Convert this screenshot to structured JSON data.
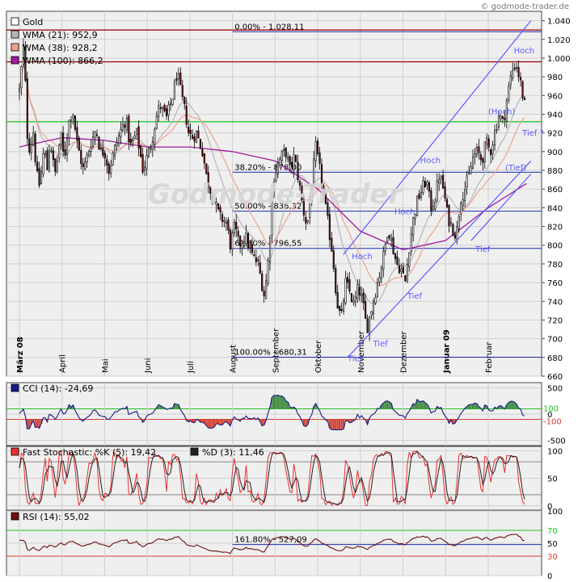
{
  "watermark": "© godmode-trader.de",
  "logo_text": "Godmode-Trader",
  "colors": {
    "panel_bg": "#efefef",
    "grid": "#cfcfcf",
    "up": "#ffffff",
    "down": "#6b0e0e",
    "wma21": "#b5b5b5",
    "wma38": "#f0a090",
    "wma100": "#a01ca0",
    "resistance": "#a01010",
    "support": "#20c020",
    "fib": "#2030b0",
    "trend": "#5b5bff",
    "cci_pos": "#3a8a3a",
    "cci_neg": "#d04030",
    "stoch_k": "#e83030",
    "stoch_d": "#202020",
    "rsi": "#6b1010"
  },
  "chart_data": [
    {
      "type": "candlestick",
      "title": "",
      "legend": [
        {
          "label": "Gold",
          "color": "#ffffff"
        },
        {
          "label": "WMA (21): 952,9",
          "color": "#b5b5b5"
        },
        {
          "label": "WMA (38): 928,2",
          "color": "#f0a090"
        },
        {
          "label": "WMA (100): 866,2",
          "color": "#a01ca0"
        }
      ],
      "legend_position": "top-left",
      "ylim": [
        660,
        1050
      ],
      "y_ticks": [
        660,
        680,
        700,
        720,
        740,
        760,
        780,
        800,
        820,
        840,
        860,
        880,
        900,
        920,
        940,
        960,
        980,
        1000,
        1020,
        1040
      ],
      "y_tick_labels": [
        "660",
        "680",
        "700",
        "720",
        "740",
        "760",
        "780",
        "800",
        "820",
        "840",
        "860",
        "880",
        "900",
        "920",
        "940",
        "960",
        "980",
        "1.000",
        "1.020",
        "1.040"
      ],
      "month_labels": [
        {
          "label": "März 08",
          "month_index": 0,
          "bold": true
        },
        {
          "label": "April",
          "month_index": 1
        },
        {
          "label": "Mai",
          "month_index": 2
        },
        {
          "label": "Juni",
          "month_index": 3
        },
        {
          "label": "Juli",
          "month_index": 4
        },
        {
          "label": "August",
          "month_index": 5
        },
        {
          "label": "September",
          "month_index": 6
        },
        {
          "label": "Oktober",
          "month_index": 7
        },
        {
          "label": "November",
          "month_index": 8
        },
        {
          "label": "Dezember",
          "month_index": 9
        },
        {
          "label": "Januar 09",
          "month_index": 10,
          "bold": true
        },
        {
          "label": "Februar",
          "month_index": 11
        }
      ],
      "close_path": [
        [
          0,
          965
        ],
        [
          0.05,
          990
        ],
        [
          0.1,
          1015
        ],
        [
          0.13,
          985
        ],
        [
          0.18,
          920
        ],
        [
          0.25,
          900
        ],
        [
          0.32,
          925
        ],
        [
          0.38,
          890
        ],
        [
          0.45,
          860
        ],
        [
          0.52,
          880
        ],
        [
          0.58,
          905
        ],
        [
          0.65,
          880
        ],
        [
          0.72,
          915
        ],
        [
          0.78,
          890
        ],
        [
          0.85,
          875
        ],
        [
          0.92,
          905
        ],
        [
          0.98,
          915
        ],
        [
          1.05,
          890
        ],
        [
          1.15,
          930
        ],
        [
          1.25,
          945
        ],
        [
          1.35,
          910
        ],
        [
          1.5,
          880
        ],
        [
          1.65,
          905
        ],
        [
          1.8,
          925
        ],
        [
          1.9,
          900
        ],
        [
          2.0,
          900
        ],
        [
          2.1,
          880
        ],
        [
          2.25,
          905
        ],
        [
          2.4,
          925
        ],
        [
          2.5,
          935
        ],
        [
          2.6,
          905
        ],
        [
          2.75,
          920
        ],
        [
          2.9,
          880
        ],
        [
          3.0,
          895
        ],
        [
          3.1,
          910
        ],
        [
          3.2,
          935
        ],
        [
          3.3,
          950
        ],
        [
          3.45,
          935
        ],
        [
          3.6,
          960
        ],
        [
          3.7,
          985
        ],
        [
          3.8,
          960
        ],
        [
          3.9,
          940
        ],
        [
          3.97,
          920
        ],
        [
          4.05,
          915
        ],
        [
          4.15,
          920
        ],
        [
          4.3,
          900
        ],
        [
          4.4,
          870
        ],
        [
          4.55,
          850
        ],
        [
          4.7,
          830
        ],
        [
          4.85,
          825
        ],
        [
          4.95,
          800
        ],
        [
          5.05,
          820
        ],
        [
          5.15,
          800
        ],
        [
          5.3,
          810
        ],
        [
          5.45,
          790
        ],
        [
          5.6,
          780
        ],
        [
          5.75,
          745
        ],
        [
          5.85,
          790
        ],
        [
          5.95,
          870
        ],
        [
          6.05,
          885
        ],
        [
          6.15,
          895
        ],
        [
          6.25,
          900
        ],
        [
          6.35,
          880
        ],
        [
          6.45,
          895
        ],
        [
          6.55,
          870
        ],
        [
          6.65,
          840
        ],
        [
          6.75,
          820
        ],
        [
          6.85,
          860
        ],
        [
          6.95,
          905
        ],
        [
          7.05,
          880
        ],
        [
          7.15,
          850
        ],
        [
          7.25,
          820
        ],
        [
          7.35,
          790
        ],
        [
          7.45,
          740
        ],
        [
          7.55,
          720
        ],
        [
          7.65,
          760
        ],
        [
          7.75,
          750
        ],
        [
          7.85,
          735
        ],
        [
          7.95,
          755
        ],
        [
          8.05,
          740
        ],
        [
          8.15,
          710
        ],
        [
          8.25,
          730
        ],
        [
          8.35,
          750
        ],
        [
          8.45,
          770
        ],
        [
          8.55,
          790
        ],
        [
          8.65,
          820
        ],
        [
          8.75,
          800
        ],
        [
          8.85,
          780
        ],
        [
          8.95,
          775
        ],
        [
          9.05,
          760
        ],
        [
          9.15,
          800
        ],
        [
          9.25,
          830
        ],
        [
          9.35,
          850
        ],
        [
          9.45,
          860
        ],
        [
          9.55,
          870
        ],
        [
          9.65,
          840
        ],
        [
          9.75,
          850
        ],
        [
          9.85,
          875
        ],
        [
          9.95,
          860
        ],
        [
          10.05,
          830
        ],
        [
          10.15,
          820
        ],
        [
          10.25,
          810
        ],
        [
          10.35,
          850
        ],
        [
          10.45,
          860
        ],
        [
          10.55,
          875
        ],
        [
          10.65,
          895
        ],
        [
          10.75,
          900
        ],
        [
          10.85,
          890
        ],
        [
          10.95,
          910
        ],
        [
          11.05,
          900
        ],
        [
          11.15,
          920
        ],
        [
          11.25,
          940
        ],
        [
          11.35,
          930
        ],
        [
          11.45,
          960
        ],
        [
          11.55,
          985
        ],
        [
          11.65,
          995
        ],
        [
          11.75,
          975
        ],
        [
          11.85,
          950
        ],
        [
          11.9,
          945
        ]
      ],
      "wma100_path": [
        [
          0,
          905
        ],
        [
          1,
          915
        ],
        [
          2,
          912
        ],
        [
          3,
          905
        ],
        [
          4,
          905
        ],
        [
          5,
          900
        ],
        [
          6,
          890
        ],
        [
          7,
          860
        ],
        [
          8,
          815
        ],
        [
          9,
          795
        ],
        [
          10,
          805
        ],
        [
          11,
          840
        ],
        [
          11.9,
          866
        ]
      ],
      "resistance_lines": [
        1030,
        996
      ],
      "support_line": 932,
      "fib_levels": [
        {
          "label": "0.00% - 1.028,11",
          "value": 1028.11
        },
        {
          "label": "38.20% - 878,00",
          "value": 878.0
        },
        {
          "label": "50.00% - 836,32",
          "value": 836.32
        },
        {
          "label": "61.80% - 796,55",
          "value": 796.55
        },
        {
          "label": "100.00% - 680,31",
          "value": 680.31
        }
      ],
      "annotations": [
        {
          "text": "Hoch",
          "x": 11.6,
          "y": 1005
        },
        {
          "text": "(Hoch)",
          "x": 11.0,
          "y": 940
        },
        {
          "text": "Tief ?",
          "x": 11.8,
          "y": 917
        },
        {
          "text": "(Tief)",
          "x": 11.4,
          "y": 880
        },
        {
          "text": "Hoch",
          "x": 9.4,
          "y": 888
        },
        {
          "text": "Hoch",
          "x": 8.8,
          "y": 833
        },
        {
          "text": "Hoch",
          "x": 7.8,
          "y": 785
        },
        {
          "text": "Tief",
          "x": 10.7,
          "y": 793
        },
        {
          "text": "Tief",
          "x": 9.1,
          "y": 743
        },
        {
          "text": "Tief",
          "x": 8.3,
          "y": 692
        },
        {
          "text": "Tief",
          "x": 7.7,
          "y": 676
        }
      ],
      "trend_lines": [
        [
          [
            7.6,
            790
          ],
          [
            12.0,
            1040
          ]
        ],
        [
          [
            7.7,
            680
          ],
          [
            12.0,
            890
          ]
        ],
        [
          [
            10.6,
            805
          ],
          [
            12.0,
            876
          ]
        ]
      ]
    },
    {
      "type": "line",
      "title": "",
      "legend": [
        {
          "label": "CCI (14): -24,69",
          "color": "#1a1a8a"
        }
      ],
      "ylim": [
        -600,
        600
      ],
      "y_tick_labels": [
        "500",
        "0",
        "-500"
      ],
      "y_ticks": [
        500,
        0,
        -500
      ],
      "reference_lines": [
        {
          "value": 100,
          "label": "100",
          "color": "#20c020"
        },
        {
          "value": -100,
          "label": "-100",
          "color": "#d04030"
        }
      ],
      "path_seed": 7,
      "last": -24.69
    },
    {
      "type": "line",
      "title": "",
      "legend": [
        {
          "label": "Fast Stochastic: %K (5): 19,42",
          "color": "#e83030"
        },
        {
          "label": "%D (3): 11,46",
          "color": "#202020"
        }
      ],
      "ylim": [
        -8,
        108
      ],
      "y_tick_labels": [
        "100",
        "50",
        "0"
      ],
      "y_ticks": [
        100,
        50,
        0
      ],
      "reference_lines": [
        {
          "value": 80
        },
        {
          "value": 20
        }
      ]
    },
    {
      "type": "line",
      "title": "",
      "legend": [
        {
          "label": "RSI (14): 55,02",
          "color": "#6b1010"
        }
      ],
      "ylim": [
        0,
        100
      ],
      "y_tick_labels": [
        "100",
        "50",
        "0"
      ],
      "y_ticks": [
        100,
        50,
        0
      ],
      "reference_lines": [
        {
          "value": 70,
          "label": "70",
          "color": "#20c020"
        },
        {
          "value": 30,
          "label": "30",
          "color": "#d04030"
        }
      ],
      "fib_label": "161.80% - 527,09",
      "fib_value": 48
    }
  ]
}
